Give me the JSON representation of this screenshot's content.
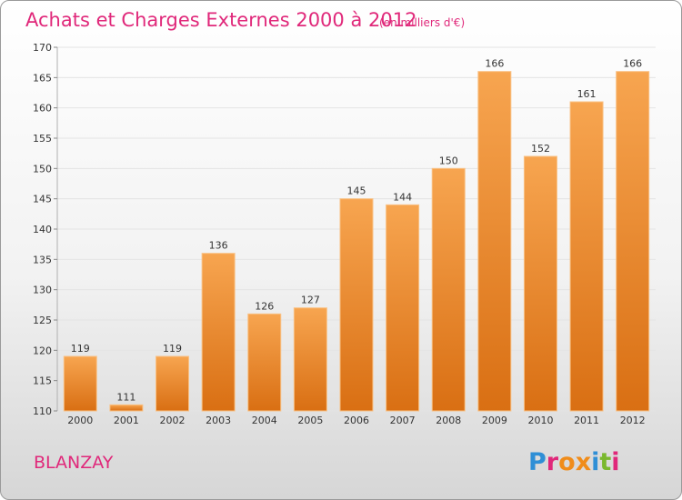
{
  "header": {
    "title": "Achats et Charges Externes 2000 à 2012",
    "unit": "(en milliers d'€)"
  },
  "commune": "BLANZAY",
  "logo": {
    "text": "Proxiti",
    "letter_colors": [
      "#2f8fd6",
      "#e0287a",
      "#f08c1a",
      "#f08c1a",
      "#2f8fd6",
      "#7ab82e",
      "#e0287a"
    ]
  },
  "colors": {
    "bar_top": "#f7a550",
    "bar_bottom": "#d96f13",
    "bar_edge": "#f9c184",
    "accent": "#e0287a"
  },
  "chart_data": {
    "type": "bar",
    "title": "Achats et Charges Externes 2000 à 2012",
    "xlabel": "",
    "ylabel": "",
    "categories": [
      "2000",
      "2001",
      "2002",
      "2003",
      "2004",
      "2005",
      "2006",
      "2007",
      "2008",
      "2009",
      "2010",
      "2011",
      "2012"
    ],
    "values": [
      119,
      111,
      119,
      136,
      126,
      127,
      145,
      144,
      150,
      166,
      152,
      161,
      166
    ],
    "ylim": [
      110,
      170
    ],
    "yticks": [
      110,
      115,
      120,
      125,
      130,
      135,
      140,
      145,
      150,
      155,
      160,
      165,
      170
    ],
    "grid": true,
    "legend": "none"
  }
}
